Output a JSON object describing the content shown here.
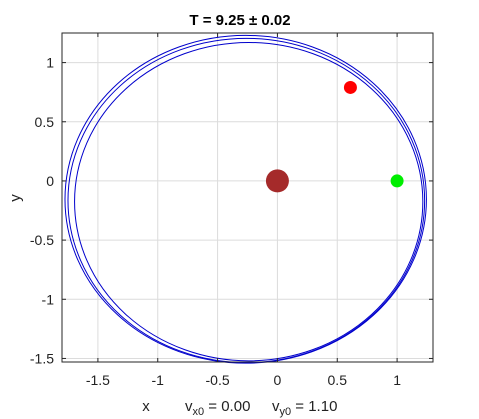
{
  "chart_data": {
    "type": "scatter",
    "title": "T = 9.25  ±  0.02",
    "xlabel": "x",
    "ylabel": "y",
    "xlim": [
      -1.8,
      1.3
    ],
    "ylim": [
      -1.53,
      1.25
    ],
    "xticks": [
      -1.5,
      -1,
      -0.5,
      0,
      0.5,
      1
    ],
    "yticks": [
      -1.5,
      -1,
      -0.5,
      0,
      0.5,
      1
    ],
    "xtick_labels": [
      "-1.5",
      "-1",
      "-0.5",
      "0",
      "0.5",
      "1"
    ],
    "ytick_labels": [
      "-1.5",
      "-1",
      "-0.5",
      "0",
      "0.5",
      "1"
    ],
    "grid": true,
    "orbit": {
      "color": "#0000cc",
      "loops": [
        {
          "cx": -0.265,
          "cy": -0.155,
          "rx": 1.51,
          "ry": 1.385
        },
        {
          "cx": -0.26,
          "cy": -0.165,
          "rx": 1.49,
          "ry": 1.37
        },
        {
          "cx": -0.24,
          "cy": -0.175,
          "rx": 1.455,
          "ry": 1.345
        }
      ]
    },
    "points": [
      {
        "name": "central body",
        "x": 0.0,
        "y": 0.0,
        "color": "#a52a2a",
        "marker": "large-circle"
      },
      {
        "name": "current position",
        "x": 0.61,
        "y": 0.79,
        "color": "#ff0000",
        "marker": "circle"
      },
      {
        "name": "start position",
        "x": 1.0,
        "y": 0.0,
        "color": "#00ee00",
        "marker": "circle"
      }
    ],
    "initial_conditions": {
      "label_x": "x",
      "vx_symbol": "v",
      "vx_sub": "x0",
      "vx_text": " = 0.00",
      "vy_symbol": "v",
      "vy_sub": "y0",
      "vy_text": " = 1.10"
    }
  }
}
